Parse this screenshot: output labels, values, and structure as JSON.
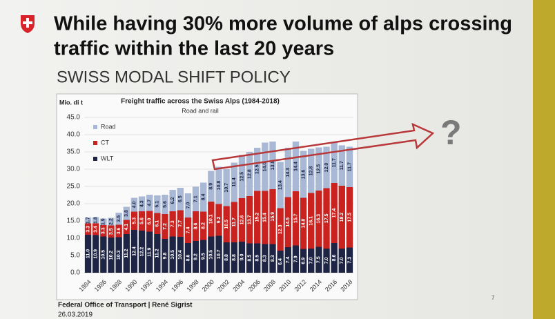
{
  "header": {
    "title_lines": [
      "While having 30% more volume of alps crossing",
      "traffic within the last 20 years"
    ],
    "subtitle": "SWISS MODAL SHIFT POLICY"
  },
  "annotation": "?",
  "footer": {
    "source": "Federal Office of Transport | René Sigrist",
    "date": "26.03.2019",
    "page": "7"
  },
  "chart_data": {
    "type": "bar",
    "stacked": true,
    "title": "Freight traffic across the Swiss Alps (1984-2018)",
    "subtitle": "Road and rail",
    "y_label": "Mio. di t",
    "categories": [
      "1984",
      null,
      "1986",
      null,
      "1988",
      null,
      "1990",
      null,
      "1992",
      null,
      "1994",
      null,
      "1996",
      null,
      "1998",
      null,
      "2000",
      null,
      "2002",
      null,
      "2004",
      null,
      "2006",
      null,
      "2008",
      null,
      "2010",
      null,
      "2012",
      null,
      "2014",
      null,
      "2016",
      null,
      "2018"
    ],
    "ylim": [
      0,
      45
    ],
    "yticks": [
      {
        "value": 0,
        "label": "0.0"
      },
      {
        "value": 5,
        "label": "5.0"
      },
      {
        "value": 10,
        "label": "10.0"
      },
      {
        "value": 15,
        "label": "15.0"
      },
      {
        "value": 20,
        "label": "20.0"
      },
      {
        "value": 25,
        "label": "25.0"
      },
      {
        "value": 30,
        "label": "30.0"
      },
      {
        "value": 35,
        "label": "35.0"
      },
      {
        "value": 40,
        "label": "40.0"
      },
      {
        "value": 45,
        "label": "45.0"
      }
    ],
    "grid": true,
    "legend": "upper left",
    "series": [
      {
        "name": "WLT",
        "color": "#1d2444",
        "values": [
          11,
          10.9,
          10.5,
          10.2,
          10.3,
          11.2,
          12.4,
          12.2,
          11.9,
          11.2,
          9.8,
          10.5,
          10.4,
          8.6,
          9.2,
          9.5,
          10.5,
          10.7,
          8.8,
          8.8,
          9,
          8.5,
          8.5,
          8.3,
          8.3,
          6.4,
          7.4,
          7.9,
          6.9,
          7,
          7.5,
          7,
          8.6,
          7,
          7.3
        ],
        "value_labels": [
          "11.0",
          "10.9",
          "10.5",
          "10.2",
          "10.3",
          "11.2",
          "12.4",
          "12.2",
          "11.9",
          "11.2",
          "9.8",
          "10.5",
          "10.4",
          "8.6",
          "9.2",
          "9.5",
          "10.5",
          "10.7",
          "8.8",
          "8.8",
          "9.0",
          "8.5",
          "8.5",
          "8.3",
          "8.3",
          "6.4",
          "7.4",
          "7.9",
          "6.9",
          "7.0",
          "7.5",
          "7.0",
          "8.6",
          "7.0",
          "7.3"
        ]
      },
      {
        "name": "CT",
        "color": "#c9221f",
        "values": [
          3.3,
          3.4,
          3.3,
          3.5,
          3.6,
          4.1,
          5.3,
          5.6,
          6,
          6.1,
          7.2,
          7.3,
          7.7,
          7.4,
          8.6,
          8.2,
          10.1,
          9.2,
          10.5,
          11.7,
          12.6,
          13.7,
          15.2,
          15.4,
          15.9,
          12.3,
          14.5,
          15.7,
          14.8,
          16.1,
          16.3,
          17.5,
          17.4,
          18.2,
          17.5
        ],
        "value_labels": [
          "3.3",
          "3.4",
          "3.3",
          "3.5",
          "3.6",
          "4.1",
          "5.3",
          "5.6",
          "6.0",
          "6.1",
          "7.2",
          "7.3",
          "7.7",
          "7.4",
          "8.6",
          "8.2",
          "10.1",
          "9.2",
          "10.5",
          "11.7",
          "12.6",
          "13.7",
          "15.2",
          "15.4",
          "15.9",
          "12.3",
          "14.5",
          "15.7",
          "14.8",
          "16.1",
          "16.3",
          "17.5",
          "17.4",
          "18.2",
          "17.5"
        ]
      },
      {
        "name": "Road",
        "color": "#a8b8d5",
        "values": [
          1.7,
          1.8,
          1.9,
          2.2,
          3.5,
          3.8,
          4,
          4.3,
          4.7,
          5.1,
          5.6,
          6.2,
          6.5,
          7,
          7.1,
          8.4,
          8.9,
          10.8,
          10.7,
          11.4,
          12.5,
          12.8,
          12.5,
          14,
          13.8,
          13.4,
          14.3,
          14.4,
          13.6,
          12.8,
          12.5,
          12,
          11.7,
          11.7,
          11.7
        ],
        "value_labels": [
          "1.7",
          "1.8",
          "1.9",
          "2.2",
          "3.5",
          "3.8",
          "4.0",
          "4.3",
          "4.7",
          "5.1",
          "5.6",
          "6.2",
          "6.5",
          "7.0",
          "7.1",
          "8.4",
          "8.9",
          "10.8",
          "10.7",
          "11.4",
          "12.5",
          "12.8",
          "12.5",
          "14.0",
          "13.8",
          "13.4",
          "14.3",
          "14.4",
          "13.6",
          "12.8",
          "12.5",
          "12.0",
          "11.7",
          "11.7",
          "11.7"
        ]
      }
    ]
  }
}
